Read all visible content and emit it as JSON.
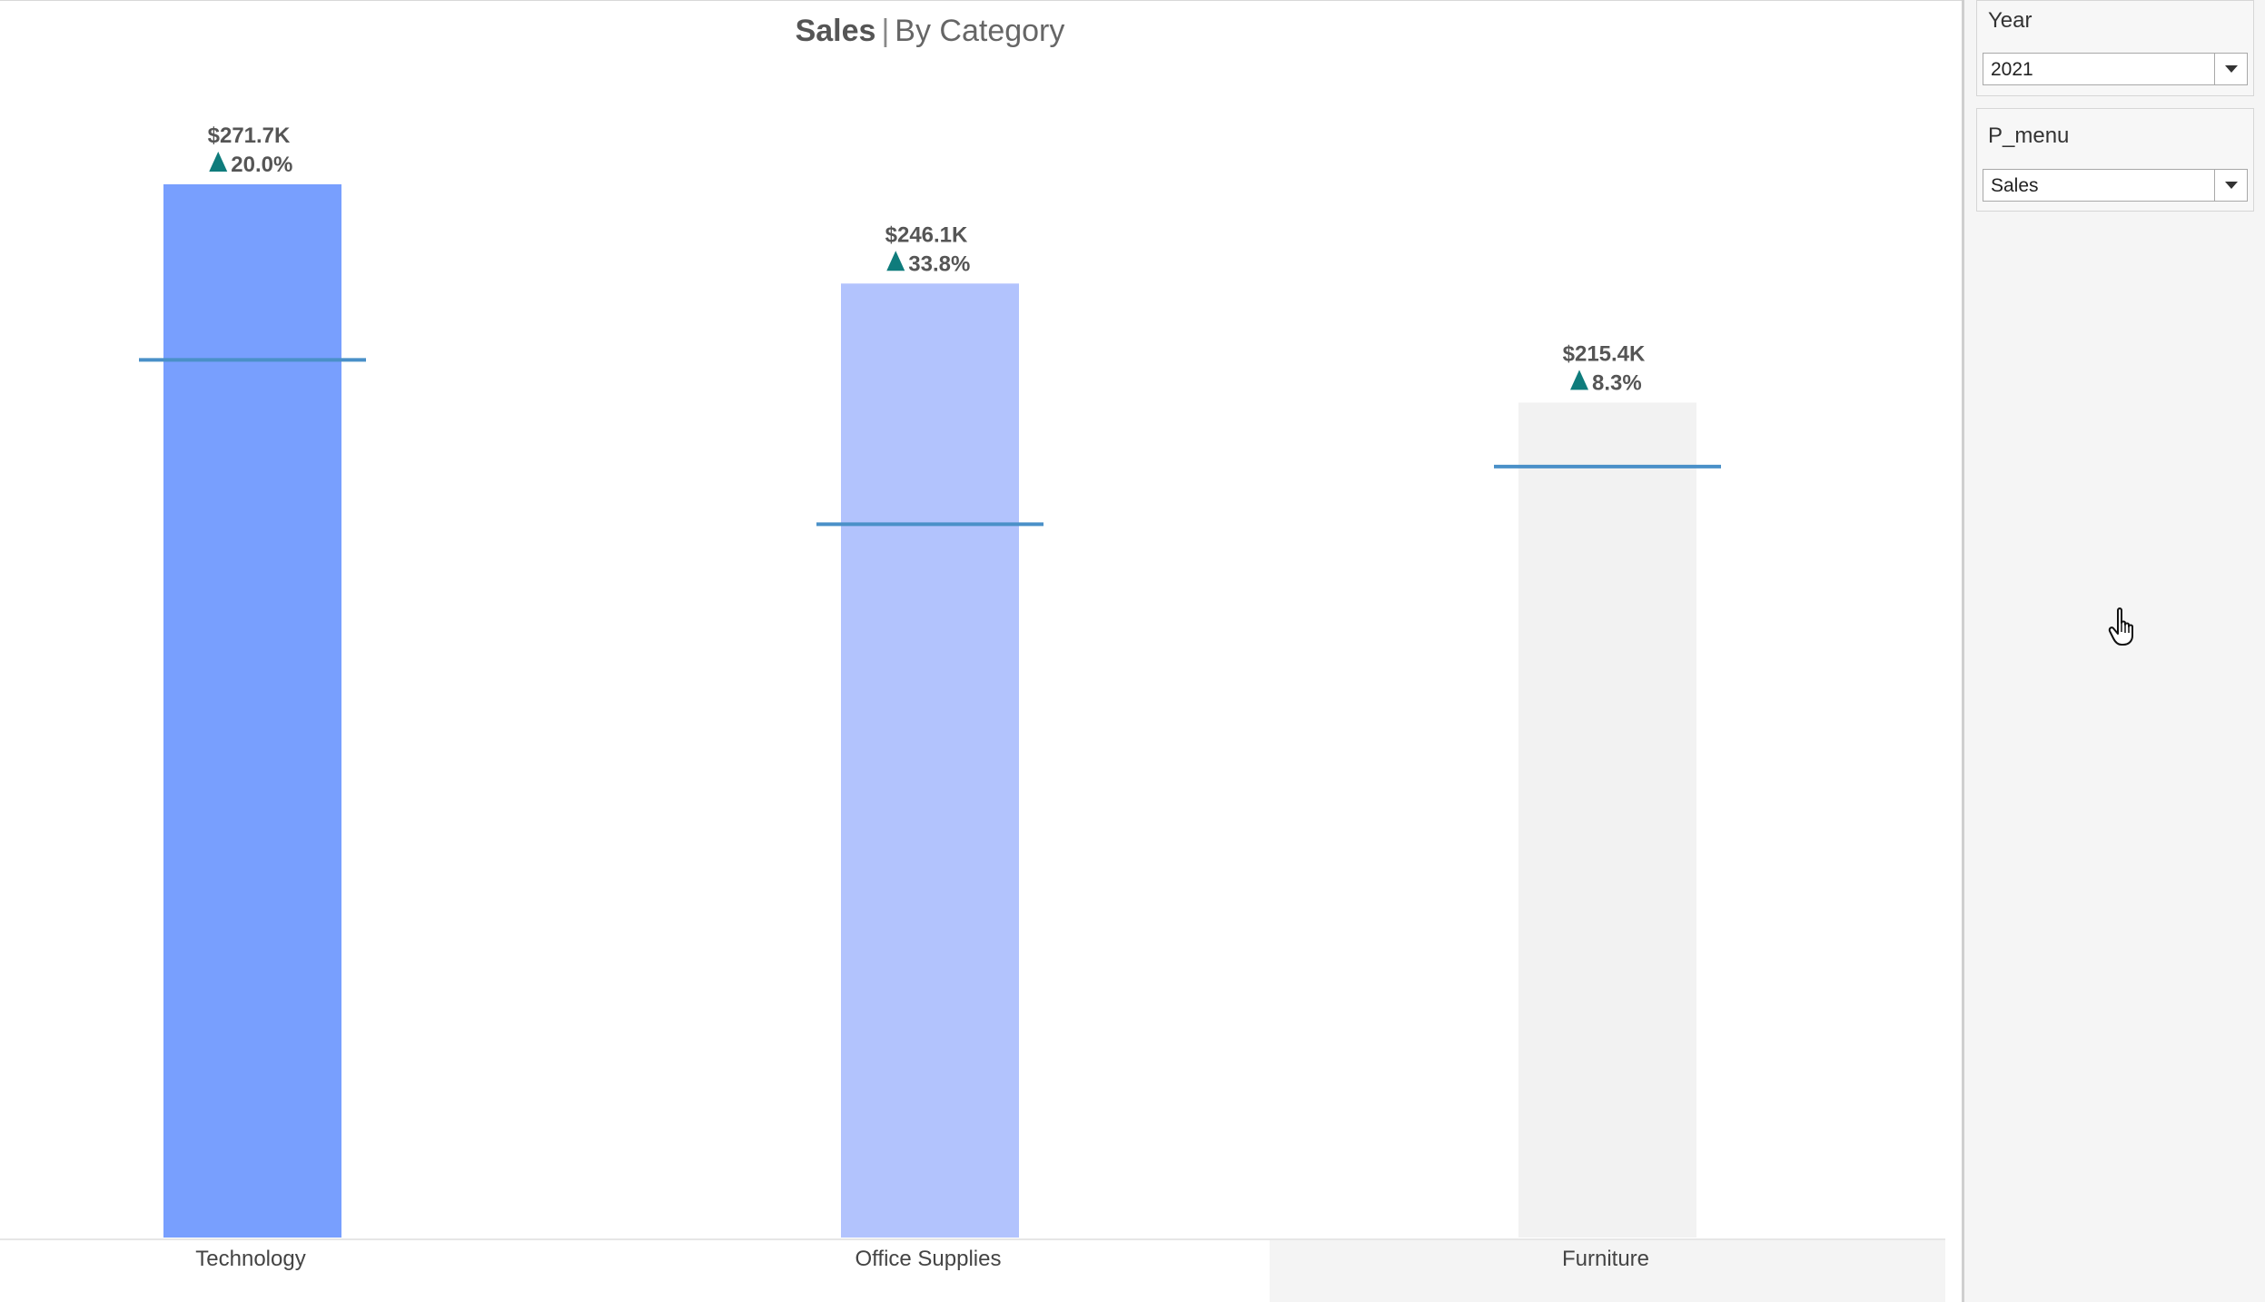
{
  "chart_data": {
    "type": "bar",
    "title": "Sales",
    "subtitle": "By Category",
    "title_separator": "|",
    "categories": [
      "Technology",
      "Office Supplies",
      "Furniture"
    ],
    "values": [
      271.7,
      246.1,
      215.4
    ],
    "value_labels": [
      "$271.7K",
      "$246.1K",
      "$215.4K"
    ],
    "change_labels": [
      "20.0%",
      "33.8%",
      "8.3%"
    ],
    "change_direction": [
      "up",
      "up",
      "up"
    ],
    "reference_values": [
      226.4,
      184.0,
      198.9
    ],
    "bar_colors": [
      "#789ffe",
      "#b2c3fd",
      "#f2f2f2"
    ],
    "reference_line_color": "#4a90c8",
    "up_arrow_color": "#0f7c7c",
    "highlighted_category": "Furniture",
    "ylim": [
      0,
      310
    ],
    "xlabel": "",
    "ylabel": "",
    "grid": false,
    "y_axis_shown": false
  },
  "filters": {
    "year": {
      "title": "Year",
      "selected": "2021"
    },
    "p_menu": {
      "title": "P_menu",
      "selected": "Sales"
    }
  },
  "icons": {
    "dropdown": "chevron-down-icon",
    "cursor": "hand-pointer-icon",
    "change_up": "triangle-up-icon"
  }
}
